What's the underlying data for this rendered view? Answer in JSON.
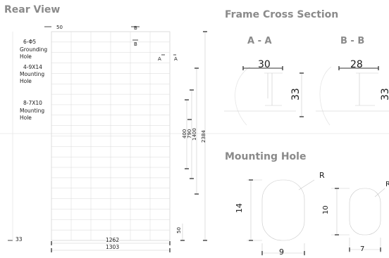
{
  "rear_view": {
    "title": "Rear View",
    "labels": {
      "top_offset": "50",
      "section_b_top": "B",
      "section_b_mark": "B",
      "section_a_left": "A",
      "section_a_right": "A",
      "bottom_offset": "50",
      "left_offset": "33"
    },
    "holes": [
      {
        "spec": "6-Φ5",
        "name_lines": [
          "Grounding",
          "Hole"
        ]
      },
      {
        "spec": "4-9X14",
        "name_lines": [
          "Mounting",
          "Hole"
        ]
      },
      {
        "spec": "8-7X10",
        "name_lines": [
          "Mounting",
          "Hole"
        ]
      }
    ],
    "vertical_dims": [
      "400",
      "790",
      "1400",
      "2384"
    ],
    "horizontal_dims": [
      "1262",
      "1303"
    ]
  },
  "frame_cross_section": {
    "title": "Frame Cross Section",
    "sections": [
      {
        "name": "A - A",
        "width": "30",
        "height": "33"
      },
      {
        "name": "B - B",
        "width": "28",
        "height": "33"
      }
    ]
  },
  "mounting_hole": {
    "title": "Mounting Hole",
    "large": {
      "radius_label": "R",
      "height": "14",
      "width": "9"
    },
    "small": {
      "radius_label": "R",
      "height": "10",
      "width": "7"
    }
  }
}
